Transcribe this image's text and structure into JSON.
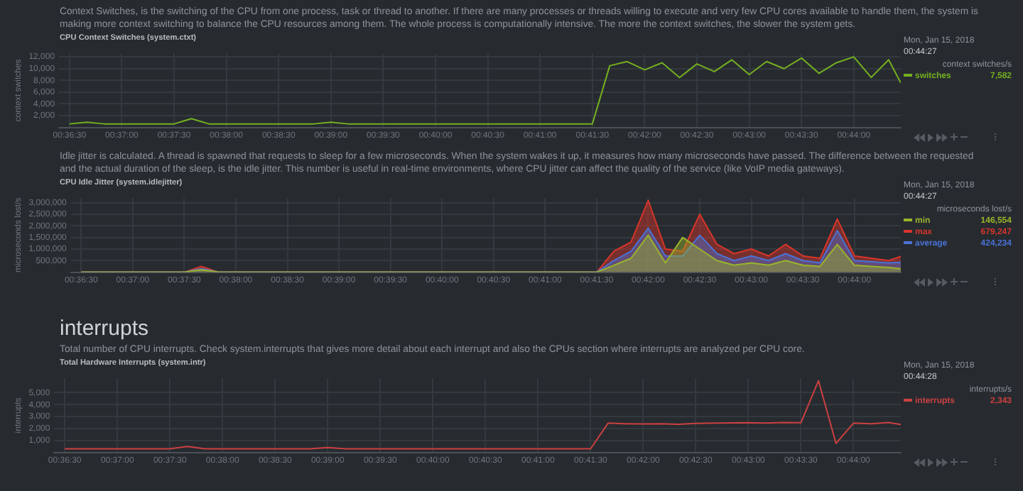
{
  "chart_data": [
    {
      "type": "line",
      "subtitle": "Context Switches, is the switching of the CPU from one process, task or thread to another. If there are many processes or threads willing to execute and very few CPU cores available to handle them, the system is making more context switching to balance the CPU resources among them. The whole process is computationally intensive. The more the context switches, the slower the system gets.",
      "title": "CPU Context Switches (system.ctxt)",
      "ylabel": "context switches",
      "legend_title": "context switches/s",
      "annotations": [
        "Mon, Jan 15, 2018",
        "00:44:27",
        "7,582"
      ],
      "legend": "right",
      "grid": true,
      "x": [
        0.60833,
        0.61111,
        0.61389,
        0.61667,
        0.61944,
        0.62222,
        0.625,
        0.62778,
        0.63056,
        0.63333,
        0.63611,
        0.63889,
        0.64167,
        0.64444,
        0.64722,
        0.65,
        0.65278,
        0.65556,
        0.65833,
        0.66111,
        0.66389,
        0.66667,
        0.66944,
        0.67222,
        0.675,
        0.67778,
        0.68056,
        0.68333,
        0.68611,
        0.68889,
        0.69167,
        0.69444,
        0.69722,
        0.7,
        0.70278,
        0.70556,
        0.70833,
        0.71111,
        0.71389,
        0.71667,
        0.71944,
        0.72222,
        0.725,
        0.72778,
        0.73056,
        0.73333,
        0.73611,
        0.73889,
        0.74083
      ],
      "xlim": [
        0.60667,
        0.74083
      ],
      "xticks": [
        {
          "value": 0.60833,
          "label": "00:36:30"
        },
        {
          "value": 0.61667,
          "label": "00:37:00"
        },
        {
          "value": 0.625,
          "label": "00:37:30"
        },
        {
          "value": 0.63333,
          "label": "00:38:00"
        },
        {
          "value": 0.64167,
          "label": "00:38:30"
        },
        {
          "value": 0.65,
          "label": "00:39:00"
        },
        {
          "value": 0.65833,
          "label": "00:39:30"
        },
        {
          "value": 0.66667,
          "label": "00:40:00"
        },
        {
          "value": 0.675,
          "label": "00:40:30"
        },
        {
          "value": 0.68333,
          "label": "00:41:00"
        },
        {
          "value": 0.69167,
          "label": "00:41:30"
        },
        {
          "value": 0.7,
          "label": "00:42:00"
        },
        {
          "value": 0.70833,
          "label": "00:42:30"
        },
        {
          "value": 0.71667,
          "label": "00:43:00"
        },
        {
          "value": 0.725,
          "label": "00:43:30"
        },
        {
          "value": 0.73333,
          "label": "00:44:00"
        }
      ],
      "ylim": [
        0,
        12600
      ],
      "yticks": [
        {
          "value": 2000,
          "label": "2,000"
        },
        {
          "value": 4000,
          "label": "4,000"
        },
        {
          "value": 6000,
          "label": "6,000"
        },
        {
          "value": 8000,
          "label": "8,000"
        },
        {
          "value": 10000,
          "label": "10,000"
        },
        {
          "value": 12000,
          "label": "12,000"
        }
      ],
      "series": [
        {
          "name": "switches",
          "color": "#75b020",
          "values": [
            600,
            900,
            600,
            600,
            600,
            600,
            600,
            1500,
            600,
            600,
            600,
            600,
            600,
            600,
            600,
            900,
            600,
            600,
            600,
            600,
            600,
            600,
            600,
            600,
            600,
            600,
            600,
            600,
            600,
            600,
            600,
            10500,
            11200,
            9800,
            11000,
            8500,
            10800,
            9500,
            11500,
            9000,
            11200,
            10000,
            11800,
            9200,
            11000,
            12000,
            8500,
            11500,
            7582
          ]
        }
      ]
    },
    {
      "type": "area",
      "subtitle": "Idle jitter is calculated. A thread is spawned that requests to sleep for a few microseconds. When the system wakes it up, it measures how many microseconds have passed. The difference between the requested and the actual duration of the sleep, is the idle jitter. This number is useful in real-time environments, where CPU jitter can affect the quality of the service (like VoIP media gateways).",
      "title": "CPU Idle Jitter (system.idlejitter)",
      "ylabel": "microseconds lost/s",
      "legend_title": "microseconds lost/s",
      "annotations": [
        "Mon, Jan 15, 2018",
        "00:44:27",
        "146,554",
        "679,247",
        "424,234"
      ],
      "legend": "right",
      "grid": true,
      "x": [
        0.60833,
        0.61111,
        0.61389,
        0.61667,
        0.61944,
        0.62222,
        0.625,
        0.62778,
        0.63056,
        0.63333,
        0.63611,
        0.63889,
        0.64167,
        0.64444,
        0.64722,
        0.65,
        0.65278,
        0.65556,
        0.65833,
        0.66111,
        0.66389,
        0.66667,
        0.66944,
        0.67222,
        0.675,
        0.67778,
        0.68056,
        0.68333,
        0.68611,
        0.68889,
        0.69167,
        0.69444,
        0.69722,
        0.7,
        0.70278,
        0.70556,
        0.70833,
        0.71111,
        0.71389,
        0.71667,
        0.71944,
        0.72222,
        0.725,
        0.72778,
        0.73056,
        0.73333,
        0.73611,
        0.73889,
        0.74083
      ],
      "xlim": [
        0.60667,
        0.74083
      ],
      "xticks": [
        {
          "value": 0.60833,
          "label": "00:36:30"
        },
        {
          "value": 0.61667,
          "label": "00:37:00"
        },
        {
          "value": 0.625,
          "label": "00:37:30"
        },
        {
          "value": 0.63333,
          "label": "00:38:00"
        },
        {
          "value": 0.64167,
          "label": "00:38:30"
        },
        {
          "value": 0.65,
          "label": "00:39:00"
        },
        {
          "value": 0.65833,
          "label": "00:39:30"
        },
        {
          "value": 0.66667,
          "label": "00:40:00"
        },
        {
          "value": 0.675,
          "label": "00:40:30"
        },
        {
          "value": 0.68333,
          "label": "00:41:00"
        },
        {
          "value": 0.69167,
          "label": "00:41:30"
        },
        {
          "value": 0.7,
          "label": "00:42:00"
        },
        {
          "value": 0.70833,
          "label": "00:42:30"
        },
        {
          "value": 0.71667,
          "label": "00:43:00"
        },
        {
          "value": 0.725,
          "label": "00:43:30"
        },
        {
          "value": 0.73333,
          "label": "00:44:00"
        }
      ],
      "ylim": [
        0,
        3200000
      ],
      "yticks": [
        {
          "value": 500000,
          "label": "500,000"
        },
        {
          "value": 1000000,
          "label": "1,000,000"
        },
        {
          "value": 1500000,
          "label": "1,500,000"
        },
        {
          "value": 2000000,
          "label": "2,000,000"
        },
        {
          "value": 2500000,
          "label": "2,500,000"
        },
        {
          "value": 3000000,
          "label": "3,000,000"
        }
      ],
      "series": [
        {
          "name": "min",
          "color": "#9ab52a",
          "values": [
            0,
            0,
            0,
            0,
            0,
            0,
            0,
            100000,
            0,
            0,
            0,
            0,
            0,
            0,
            0,
            0,
            0,
            0,
            0,
            0,
            0,
            0,
            0,
            0,
            0,
            0,
            0,
            0,
            0,
            0,
            0,
            300000,
            600000,
            1600000,
            400000,
            1500000,
            1000000,
            500000,
            300000,
            400000,
            300000,
            500000,
            300000,
            250000,
            1200000,
            300000,
            250000,
            200000,
            146554
          ]
        },
        {
          "name": "max",
          "color": "#d9352a",
          "values": [
            0,
            0,
            0,
            0,
            0,
            0,
            0,
            250000,
            0,
            0,
            0,
            0,
            0,
            0,
            0,
            0,
            0,
            0,
            0,
            0,
            0,
            0,
            0,
            0,
            0,
            0,
            0,
            0,
            0,
            0,
            0,
            900000,
            1300000,
            3100000,
            1000000,
            900000,
            2500000,
            1200000,
            800000,
            1000000,
            700000,
            1200000,
            700000,
            600000,
            2300000,
            700000,
            600000,
            500000,
            679247
          ]
        },
        {
          "name": "average",
          "color": "#4a72d6",
          "values": [
            0,
            0,
            0,
            0,
            0,
            0,
            0,
            150000,
            0,
            0,
            0,
            0,
            0,
            0,
            0,
            0,
            0,
            0,
            0,
            0,
            0,
            0,
            0,
            0,
            0,
            0,
            0,
            0,
            0,
            0,
            0,
            500000,
            900000,
            1900000,
            700000,
            700000,
            1600000,
            800000,
            500000,
            700000,
            500000,
            800000,
            500000,
            400000,
            1800000,
            500000,
            450000,
            400000,
            424234
          ]
        }
      ]
    },
    {
      "type": "line",
      "subtitle": "Total number of CPU interrupts. Check system.interrupts that gives more detail about each interrupt and also the CPUs section where interrupts are analyzed per CPU core.",
      "title": "Total Hardware Interrupts (system.intr)",
      "ylabel": "interrupts",
      "legend_title": "interrupts/s",
      "annotations": [
        "interrupts",
        "Mon, Jan 15, 2018",
        "00:44:28",
        "2,343"
      ],
      "legend": "right",
      "grid": true,
      "x": [
        0.60833,
        0.61111,
        0.61389,
        0.61667,
        0.61944,
        0.62222,
        0.625,
        0.62778,
        0.63056,
        0.63333,
        0.63611,
        0.63889,
        0.64167,
        0.64444,
        0.64722,
        0.65,
        0.65278,
        0.65556,
        0.65833,
        0.66111,
        0.66389,
        0.66667,
        0.66944,
        0.67222,
        0.675,
        0.67778,
        0.68056,
        0.68333,
        0.68611,
        0.68889,
        0.69167,
        0.69444,
        0.69722,
        0.7,
        0.70278,
        0.70556,
        0.70833,
        0.71111,
        0.71389,
        0.71667,
        0.71944,
        0.72222,
        0.725,
        0.72778,
        0.73056,
        0.73333,
        0.73611,
        0.73889,
        0.74083
      ],
      "xlim": [
        0.60667,
        0.74083
      ],
      "xticks": [
        {
          "value": 0.60833,
          "label": "00:36:30"
        },
        {
          "value": 0.61667,
          "label": "00:37:00"
        },
        {
          "value": 0.625,
          "label": "00:37:30"
        },
        {
          "value": 0.63333,
          "label": "00:38:00"
        },
        {
          "value": 0.64167,
          "label": "00:38:30"
        },
        {
          "value": 0.65,
          "label": "00:39:00"
        },
        {
          "value": 0.65833,
          "label": "00:39:30"
        },
        {
          "value": 0.66667,
          "label": "00:40:00"
        },
        {
          "value": 0.675,
          "label": "00:40:30"
        },
        {
          "value": 0.68333,
          "label": "00:41:00"
        },
        {
          "value": 0.69167,
          "label": "00:41:30"
        },
        {
          "value": 0.7,
          "label": "00:42:00"
        },
        {
          "value": 0.70833,
          "label": "00:42:30"
        },
        {
          "value": 0.71667,
          "label": "00:43:00"
        },
        {
          "value": 0.725,
          "label": "00:43:30"
        },
        {
          "value": 0.73333,
          "label": "00:44:00"
        }
      ],
      "ylim": [
        0,
        6200
      ],
      "yticks": [
        {
          "value": 1000,
          "label": "1,000"
        },
        {
          "value": 2000,
          "label": "2,000"
        },
        {
          "value": 3000,
          "label": "3,000"
        },
        {
          "value": 4000,
          "label": "4,000"
        },
        {
          "value": 5000,
          "label": "5,000"
        }
      ],
      "series": [
        {
          "name": "interrupts",
          "color": "#cc4040",
          "values": [
            300,
            300,
            300,
            300,
            300,
            300,
            300,
            500,
            300,
            300,
            300,
            300,
            300,
            300,
            300,
            400,
            300,
            300,
            300,
            300,
            300,
            300,
            300,
            300,
            300,
            300,
            300,
            300,
            300,
            300,
            300,
            2450,
            2400,
            2380,
            2400,
            2350,
            2420,
            2450,
            2470,
            2480,
            2450,
            2500,
            2480,
            6000,
            750,
            2450,
            2400,
            2500,
            2343
          ]
        }
      ]
    }
  ]
}
